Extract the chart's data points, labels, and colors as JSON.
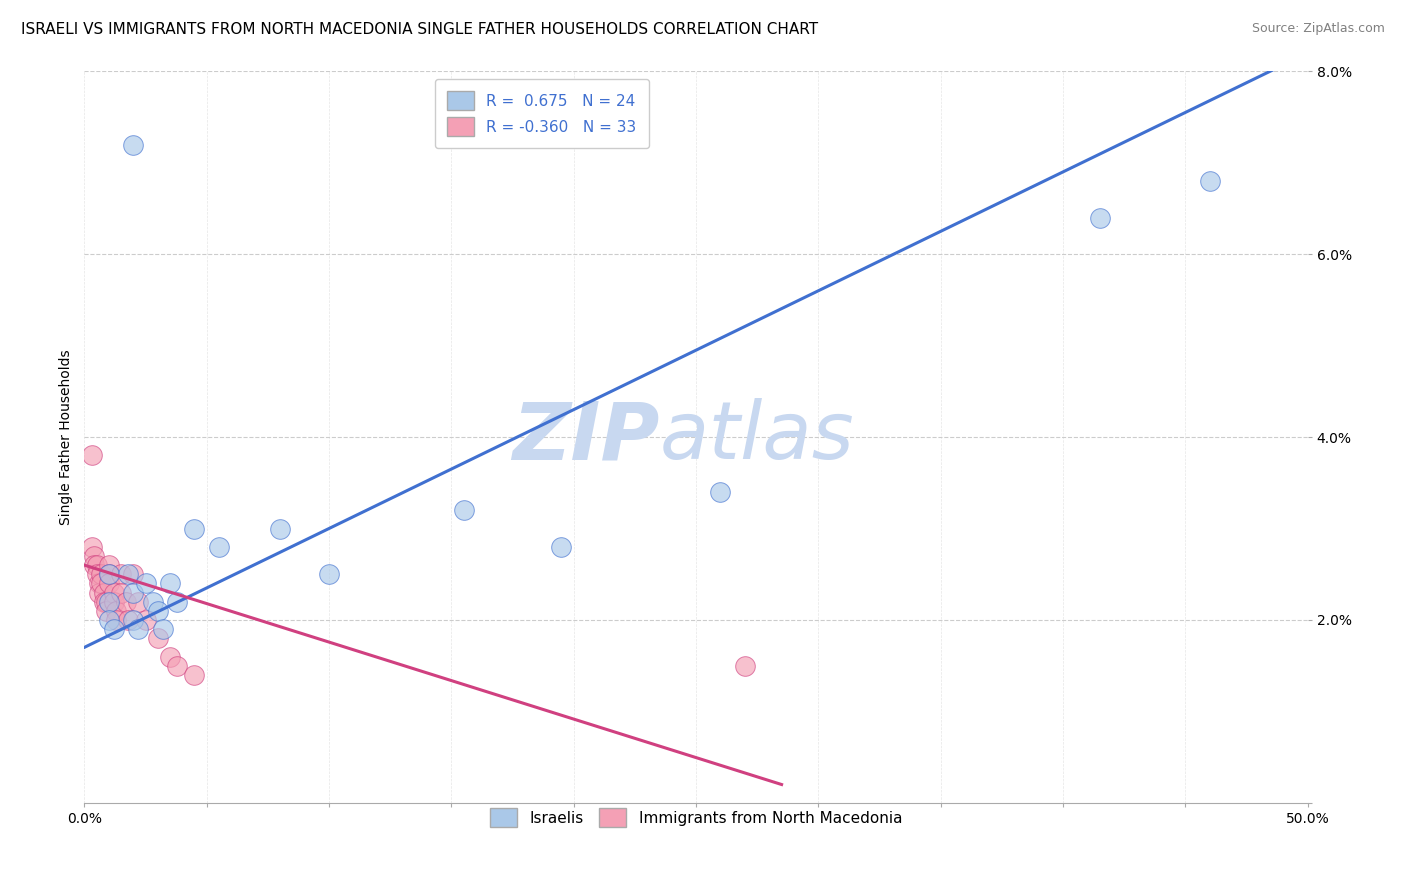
{
  "title": "ISRAELI VS IMMIGRANTS FROM NORTH MACEDONIA SINGLE FATHER HOUSEHOLDS CORRELATION CHART",
  "source": "Source: ZipAtlas.com",
  "ylabel": "Single Father Households",
  "xlim": [
    0,
    0.5
  ],
  "ylim": [
    0,
    0.08
  ],
  "xticks": [
    0.0,
    0.05,
    0.1,
    0.15,
    0.2,
    0.25,
    0.3,
    0.35,
    0.4,
    0.45,
    0.5
  ],
  "yticks": [
    0.0,
    0.02,
    0.04,
    0.06,
    0.08
  ],
  "xticklabels_show": [
    "0.0%",
    "50.0%"
  ],
  "xticklabels_show_pos": [
    0.0,
    0.5
  ],
  "yticklabels": [
    "",
    "2.0%",
    "4.0%",
    "6.0%",
    "8.0%"
  ],
  "blue_R": "0.675",
  "blue_N": "24",
  "pink_R": "-0.360",
  "pink_N": "33",
  "blue_color": "#aac8e8",
  "pink_color": "#f4a0b5",
  "blue_line_color": "#4070d0",
  "pink_line_color": "#d04080",
  "watermark_zip": "ZIP",
  "watermark_atlas": "atlas",
  "watermark_color": "#c8d8f0",
  "legend_label_blue": "Israelis",
  "legend_label_pink": "Immigrants from North Macedonia",
  "blue_points": [
    [
      0.02,
      0.072
    ],
    [
      0.01,
      0.025
    ],
    [
      0.01,
      0.022
    ],
    [
      0.01,
      0.02
    ],
    [
      0.012,
      0.019
    ],
    [
      0.018,
      0.025
    ],
    [
      0.02,
      0.023
    ],
    [
      0.02,
      0.02
    ],
    [
      0.022,
      0.019
    ],
    [
      0.025,
      0.024
    ],
    [
      0.028,
      0.022
    ],
    [
      0.03,
      0.021
    ],
    [
      0.032,
      0.019
    ],
    [
      0.035,
      0.024
    ],
    [
      0.038,
      0.022
    ],
    [
      0.045,
      0.03
    ],
    [
      0.055,
      0.028
    ],
    [
      0.08,
      0.03
    ],
    [
      0.1,
      0.025
    ],
    [
      0.155,
      0.032
    ],
    [
      0.195,
      0.028
    ],
    [
      0.26,
      0.034
    ],
    [
      0.415,
      0.064
    ],
    [
      0.46,
      0.068
    ]
  ],
  "pink_points": [
    [
      0.003,
      0.038
    ],
    [
      0.003,
      0.028
    ],
    [
      0.004,
      0.027
    ],
    [
      0.004,
      0.026
    ],
    [
      0.005,
      0.026
    ],
    [
      0.005,
      0.025
    ],
    [
      0.006,
      0.024
    ],
    [
      0.006,
      0.023
    ],
    [
      0.007,
      0.025
    ],
    [
      0.007,
      0.024
    ],
    [
      0.008,
      0.023
    ],
    [
      0.008,
      0.022
    ],
    [
      0.009,
      0.022
    ],
    [
      0.009,
      0.021
    ],
    [
      0.01,
      0.026
    ],
    [
      0.01,
      0.025
    ],
    [
      0.01,
      0.024
    ],
    [
      0.012,
      0.023
    ],
    [
      0.012,
      0.022
    ],
    [
      0.013,
      0.021
    ],
    [
      0.013,
      0.02
    ],
    [
      0.015,
      0.025
    ],
    [
      0.015,
      0.023
    ],
    [
      0.017,
      0.022
    ],
    [
      0.018,
      0.02
    ],
    [
      0.02,
      0.025
    ],
    [
      0.022,
      0.022
    ],
    [
      0.025,
      0.02
    ],
    [
      0.03,
      0.018
    ],
    [
      0.035,
      0.016
    ],
    [
      0.038,
      0.015
    ],
    [
      0.045,
      0.014
    ],
    [
      0.27,
      0.015
    ]
  ],
  "blue_line_x": [
    0.0,
    0.5
  ],
  "blue_line_y": [
    0.017,
    0.082
  ],
  "pink_line_x": [
    0.0,
    0.285
  ],
  "pink_line_y": [
    0.026,
    0.002
  ],
  "background_color": "#ffffff",
  "grid_color": "#cccccc",
  "title_fontsize": 11,
  "axis_label_fontsize": 10,
  "tick_fontsize": 10,
  "legend_fontsize": 11
}
